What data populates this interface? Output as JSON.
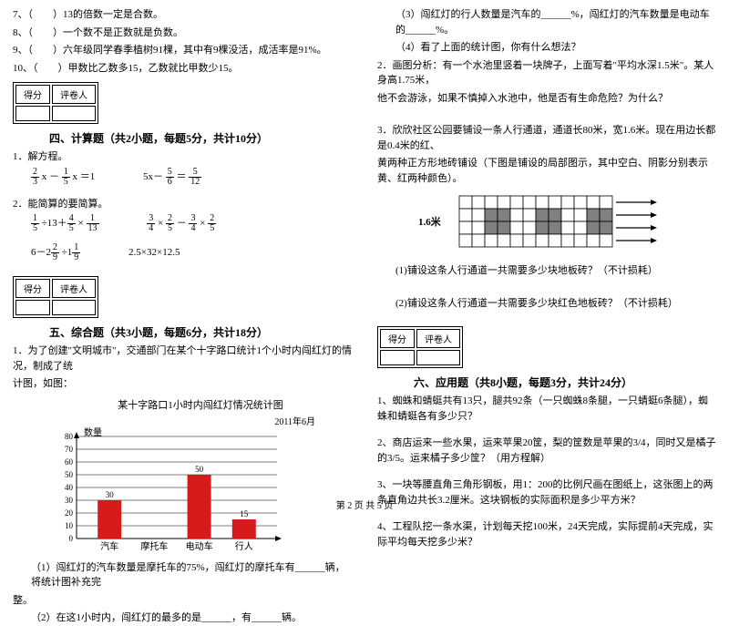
{
  "left": {
    "tf": [
      {
        "n": "7",
        "txt": "（　　）13的倍数一定是合数。"
      },
      {
        "n": "8",
        "txt": "（　　）一个数不是正数就是负数。"
      },
      {
        "n": "9",
        "txt": "（　　）六年级同学春季植树91棵，其中有9棵没活，成活率是91%。"
      },
      {
        "n": "10",
        "txt": "（　　）甲数比乙数多15，乙数就比甲数少15。"
      }
    ],
    "scoreLabels": {
      "a": "得分",
      "b": "评卷人"
    },
    "sec4": {
      "title": "四、计算题（共2小题，每题5分，共计10分）",
      "q1": "1．解方程。",
      "q2": "2．能简算的要简算。"
    },
    "sec5": {
      "title": "五、综合题（共3小题，每题6分，共计18分）",
      "q1a": "1．为了创建\"文明城市\"，交通部门在某个十字路口统计1个小时内闯红灯的情况，制成了统",
      "q1b": "计图，如图：",
      "chartTitle": "某十字路口1小时内闯红灯情况统计图",
      "chartDate": "2011年6月",
      "yLabel": "数量",
      "cats": [
        "汽车",
        "摩托车",
        "电动车",
        "行人"
      ],
      "vals": [
        30,
        0,
        50,
        15
      ],
      "valLabels": [
        "30",
        "",
        "50",
        "15"
      ],
      "yticks": [
        0,
        10,
        20,
        30,
        40,
        50,
        60,
        70,
        80
      ],
      "barColor": "#d51b1b",
      "grid": "#000",
      "sub1": "（1）闯红灯的汽车数量是摩托车的75%，闯红灯的摩托车有______辆，将统计图补充完",
      "sub1b": "整。",
      "sub2": "（2）在这1小时内，闯红灯的最多的是______，有______辆。"
    }
  },
  "right": {
    "top": [
      "（3）闯红灯的行人数量是汽车的______%，闯红灯的汽车数量是电动车的______%。",
      "（4）看了上面的统计图，你有什么想法？",
      "2．画图分析：有一个水池里竖着一块牌子，上面写着\"平均水深1.5米\"。某人身高1.75米，",
      "他不会游泳，如果不慎掉入水池中，他是否有生命危险？为什么？"
    ],
    "q3a": "3．欣欣社区公园要铺设一条人行通道，通道长80米，宽1.6米。现在用边长都是0.4米的红、",
    "q3b": "黄两种正方形地砖铺设（下图是铺设的局部图示，其中空白、阴影分别表示黄、红两种颜色）。",
    "tiles": {
      "label": "1.6米",
      "rows": 4,
      "cols": 12,
      "red": "#808080",
      "cellSize": 14,
      "redCells": [
        [
          1,
          2
        ],
        [
          1,
          3
        ],
        [
          2,
          2
        ],
        [
          2,
          3
        ],
        [
          1,
          6
        ],
        [
          1,
          7
        ],
        [
          2,
          6
        ],
        [
          2,
          7
        ],
        [
          1,
          10
        ],
        [
          1,
          11
        ],
        [
          2,
          10
        ],
        [
          2,
          11
        ]
      ]
    },
    "q3s1": "(1)铺设这条人行通道一共需要多少块地板砖？（不计损耗）",
    "q3s2": "(2)铺设这条人行通道一共需要多少块红色地板砖？（不计损耗）",
    "scoreLabels": {
      "a": "得分",
      "b": "评卷人"
    },
    "sec6": {
      "title": "六、应用题（共8小题，每题3分，共计24分）",
      "items": [
        "1、蜘蛛和蜻蜓共有13只，腿共92条（一只蜘蛛8条腿，一只蜻蜓6条腿），蜘蛛和蜻蜓各有多少只？",
        "2、商店运来一些水果，运来苹果20筐，梨的筐数是苹果的3/4，同时又是橘子的3/5。运来橘子多少筐？（用方程解）",
        "3、一块等腰直角三角形钢板，用1：200的比例尺画在图纸上，这张图上的两条直角边共长3.2厘米。这块钢板的实际面积是多少平方米？",
        "4、工程队挖一条水渠，计划每天挖100米，24天完成，实际提前4天完成，实际平均每天挖多少米？"
      ]
    }
  },
  "footer": "第 2 页 共 5 页"
}
